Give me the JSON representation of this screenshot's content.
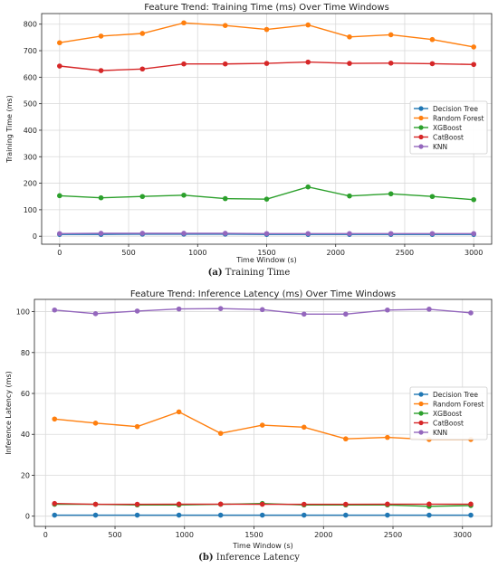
{
  "chart_data": [
    {
      "type": "line",
      "title": "Feature Trend: Training Time (ms) Over Time Windows",
      "xlabel": "Time Window (s)",
      "ylabel": "Training Time (ms)",
      "xlim": [
        -130,
        3130
      ],
      "ylim": [
        -30,
        840
      ],
      "xticks": [
        0,
        500,
        1000,
        1500,
        2000,
        2500,
        3000
      ],
      "yticks": [
        0,
        100,
        200,
        300,
        400,
        500,
        600,
        700,
        800
      ],
      "grid": true,
      "legend_position": "center-right",
      "x": [
        0,
        300,
        600,
        900,
        1200,
        1500,
        1800,
        2100,
        2400,
        2700,
        3000
      ],
      "series": [
        {
          "name": "Decision Tree",
          "color": "#1f77b4",
          "values": [
            7,
            7,
            8,
            8,
            8,
            7,
            7,
            7,
            7,
            7,
            7
          ]
        },
        {
          "name": "Random Forest",
          "color": "#ff7f0e",
          "values": [
            730,
            755,
            765,
            805,
            795,
            780,
            797,
            752,
            760,
            742,
            714
          ]
        },
        {
          "name": "XGBoost",
          "color": "#2ca02c",
          "values": [
            153,
            145,
            150,
            155,
            142,
            140,
            186,
            152,
            160,
            150,
            138
          ]
        },
        {
          "name": "CatBoost",
          "color": "#d62728",
          "values": [
            642,
            625,
            631,
            650,
            650,
            652,
            657,
            652,
            653,
            651,
            648
          ]
        },
        {
          "name": "KNN",
          "color": "#9467bd",
          "values": [
            10,
            11,
            11,
            11,
            11,
            10,
            10,
            10,
            10,
            10,
            10
          ]
        }
      ]
    },
    {
      "type": "line",
      "title": "Feature Trend: Inference Latency (ms) Over Time Windows",
      "xlabel": "Time Window (s)",
      "ylabel": "Inference Latency (ms)",
      "xlim": [
        -80,
        3210
      ],
      "ylim": [
        -5,
        106
      ],
      "xticks": [
        0,
        500,
        1000,
        1500,
        2000,
        2500,
        3000
      ],
      "yticks": [
        0,
        20,
        40,
        60,
        80,
        100
      ],
      "grid": true,
      "legend_position": "center-right",
      "x": [
        65,
        360,
        660,
        960,
        1260,
        1560,
        1860,
        2160,
        2460,
        2760,
        3060
      ],
      "series": [
        {
          "name": "Decision Tree",
          "color": "#1f77b4",
          "values": [
            0.5,
            0.5,
            0.5,
            0.5,
            0.5,
            0.5,
            0.5,
            0.5,
            0.5,
            0.5,
            0.5
          ]
        },
        {
          "name": "Random Forest",
          "color": "#ff7f0e",
          "values": [
            47.5,
            45.5,
            43.8,
            51.0,
            40.5,
            44.5,
            43.5,
            37.8,
            38.5,
            37.5,
            37.5
          ]
        },
        {
          "name": "XGBoost",
          "color": "#2ca02c",
          "values": [
            5.8,
            5.8,
            5.5,
            5.5,
            5.8,
            6.2,
            5.5,
            5.5,
            5.5,
            4.8,
            5.2
          ]
        },
        {
          "name": "CatBoost",
          "color": "#d62728",
          "values": [
            6.2,
            5.8,
            5.8,
            5.9,
            5.9,
            5.8,
            5.8,
            5.8,
            5.9,
            5.9,
            5.9
          ]
        },
        {
          "name": "KNN",
          "color": "#9467bd",
          "values": [
            100.8,
            99.0,
            100.3,
            101.3,
            101.5,
            101.0,
            98.8,
            98.8,
            100.8,
            101.2,
            99.4
          ]
        }
      ]
    }
  ],
  "captions": [
    {
      "label": "(a)",
      "text": "Training Time"
    },
    {
      "label": "(b)",
      "text": "Inference Latency"
    }
  ]
}
